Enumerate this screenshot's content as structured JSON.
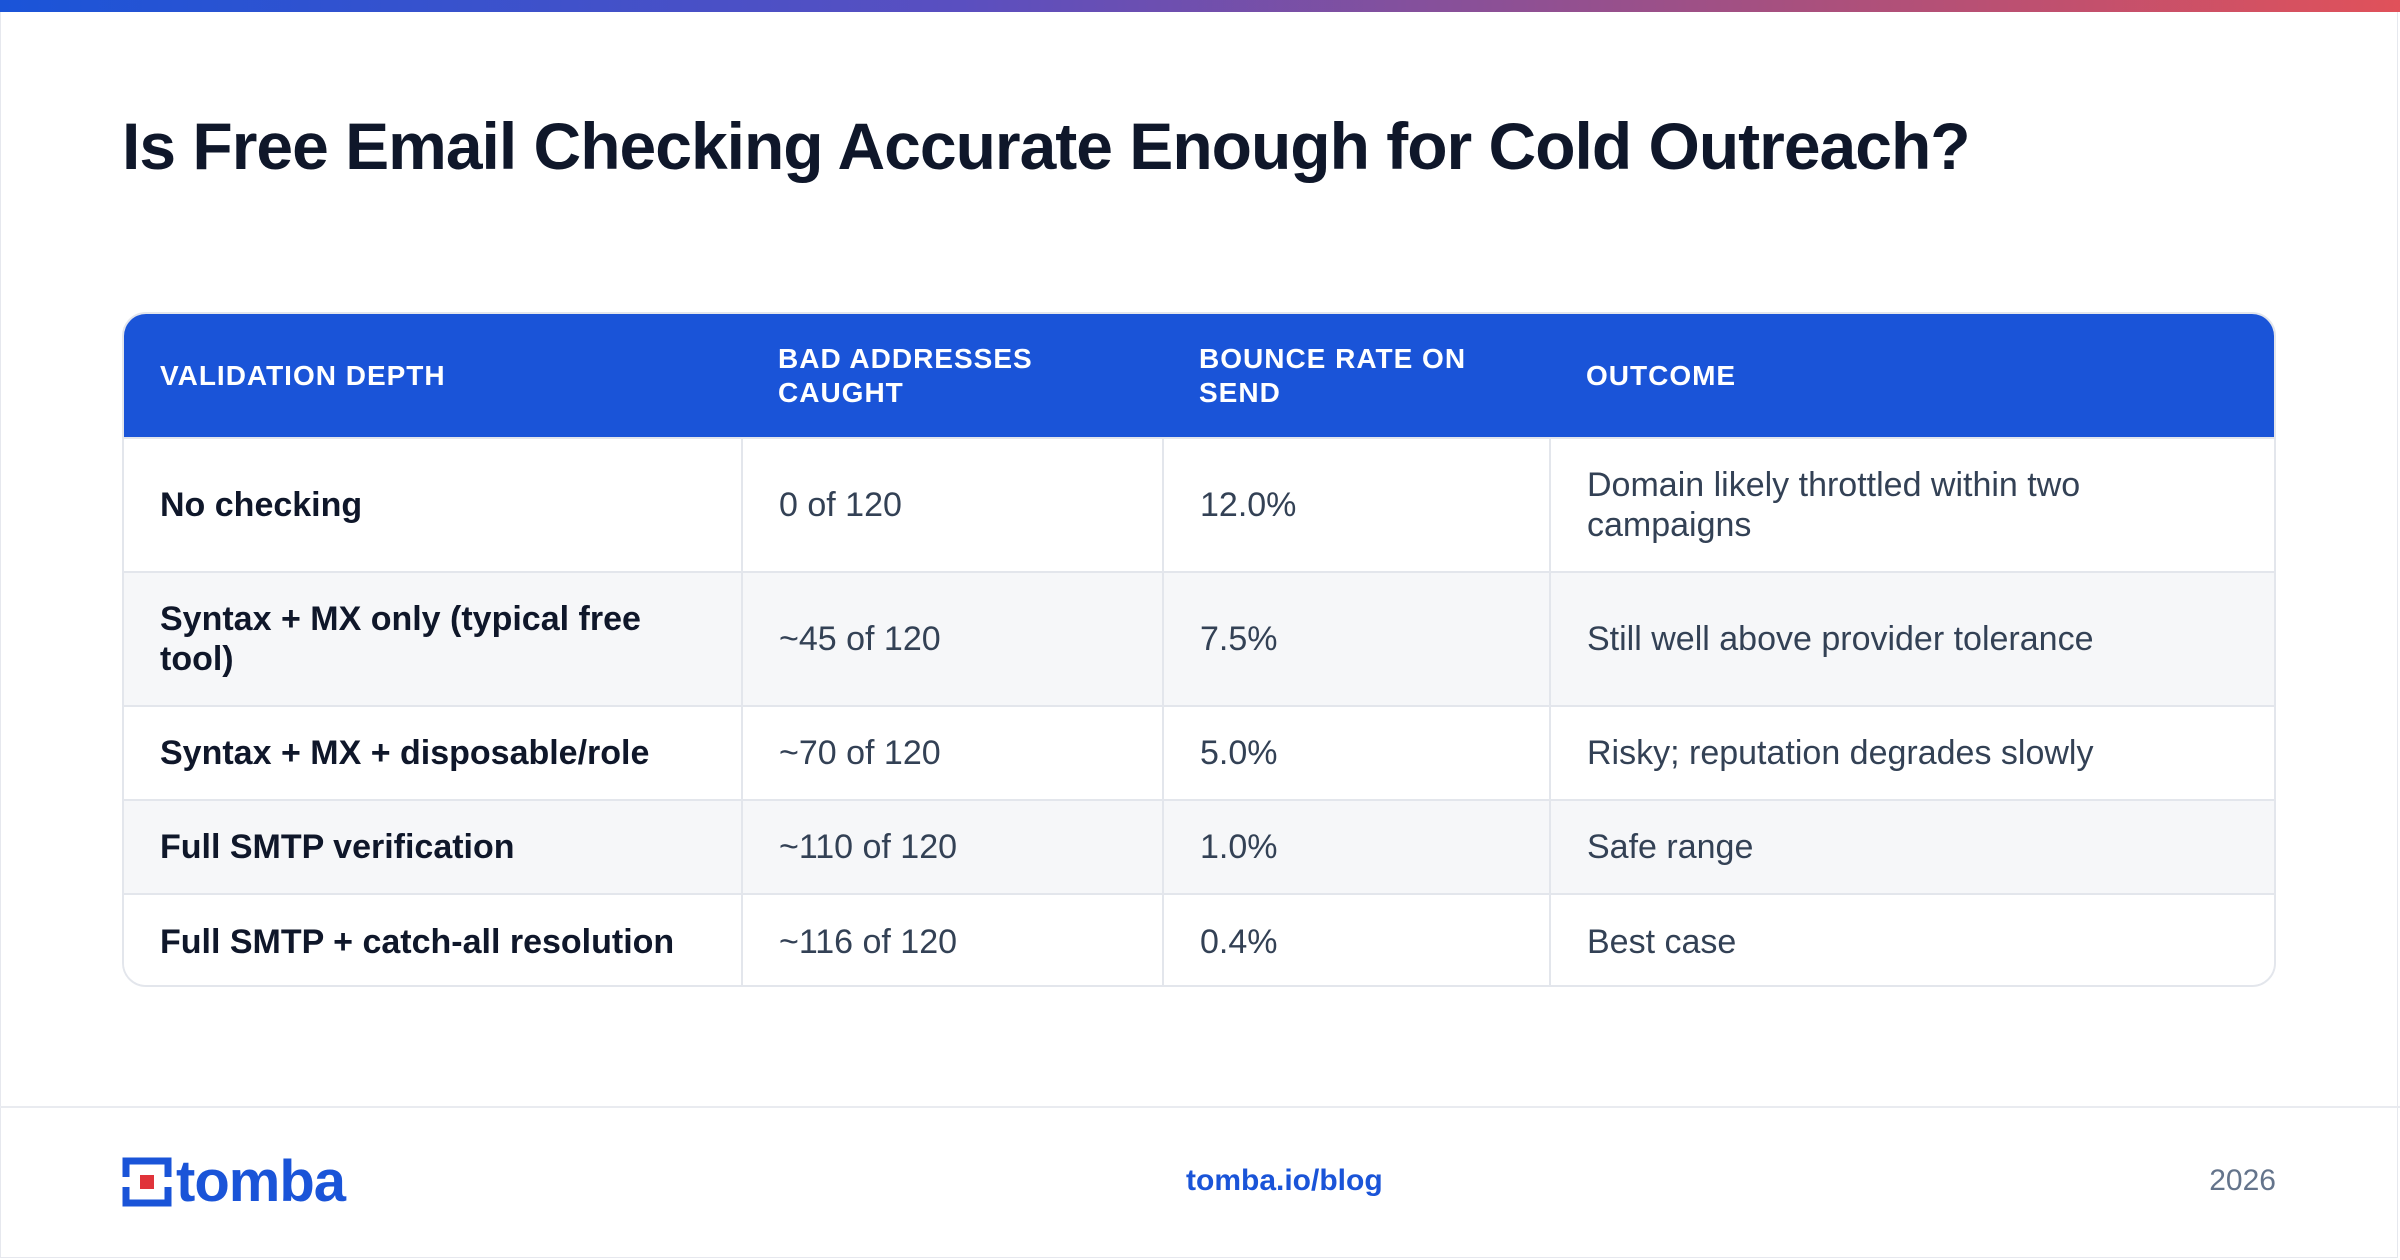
{
  "header": {
    "title": "Is Free Email Checking Accurate Enough for Cold Outreach?"
  },
  "table": {
    "columns": [
      "VALIDATION DEPTH",
      "BAD ADDRESSES CAUGHT",
      "BOUNCE RATE ON SEND",
      "OUTCOME"
    ],
    "rows": [
      [
        "No checking",
        "0 of 120",
        "12.0%",
        "Domain likely throttled within two campaigns"
      ],
      [
        "Syntax + MX only (typical free tool)",
        "~45 of 120",
        "7.5%",
        "Still well above provider tolerance"
      ],
      [
        "Syntax + MX + disposable/role",
        "~70 of 120",
        "5.0%",
        "Risky; reputation degrades slowly"
      ],
      [
        "Full SMTP verification",
        "~110 of 120",
        "1.0%",
        "Safe range"
      ],
      [
        "Full SMTP + catch-all resolution",
        "~116 of 120",
        "0.4%",
        "Best case"
      ]
    ]
  },
  "footer": {
    "brand": "tomba",
    "link": "tomba.io/blog",
    "year": "2026"
  },
  "colors": {
    "accent": "#1a54d8",
    "logo_red": "#e0333a",
    "title": "#0f172a"
  },
  "icons": {
    "logo": "tomba-logo-icon"
  }
}
